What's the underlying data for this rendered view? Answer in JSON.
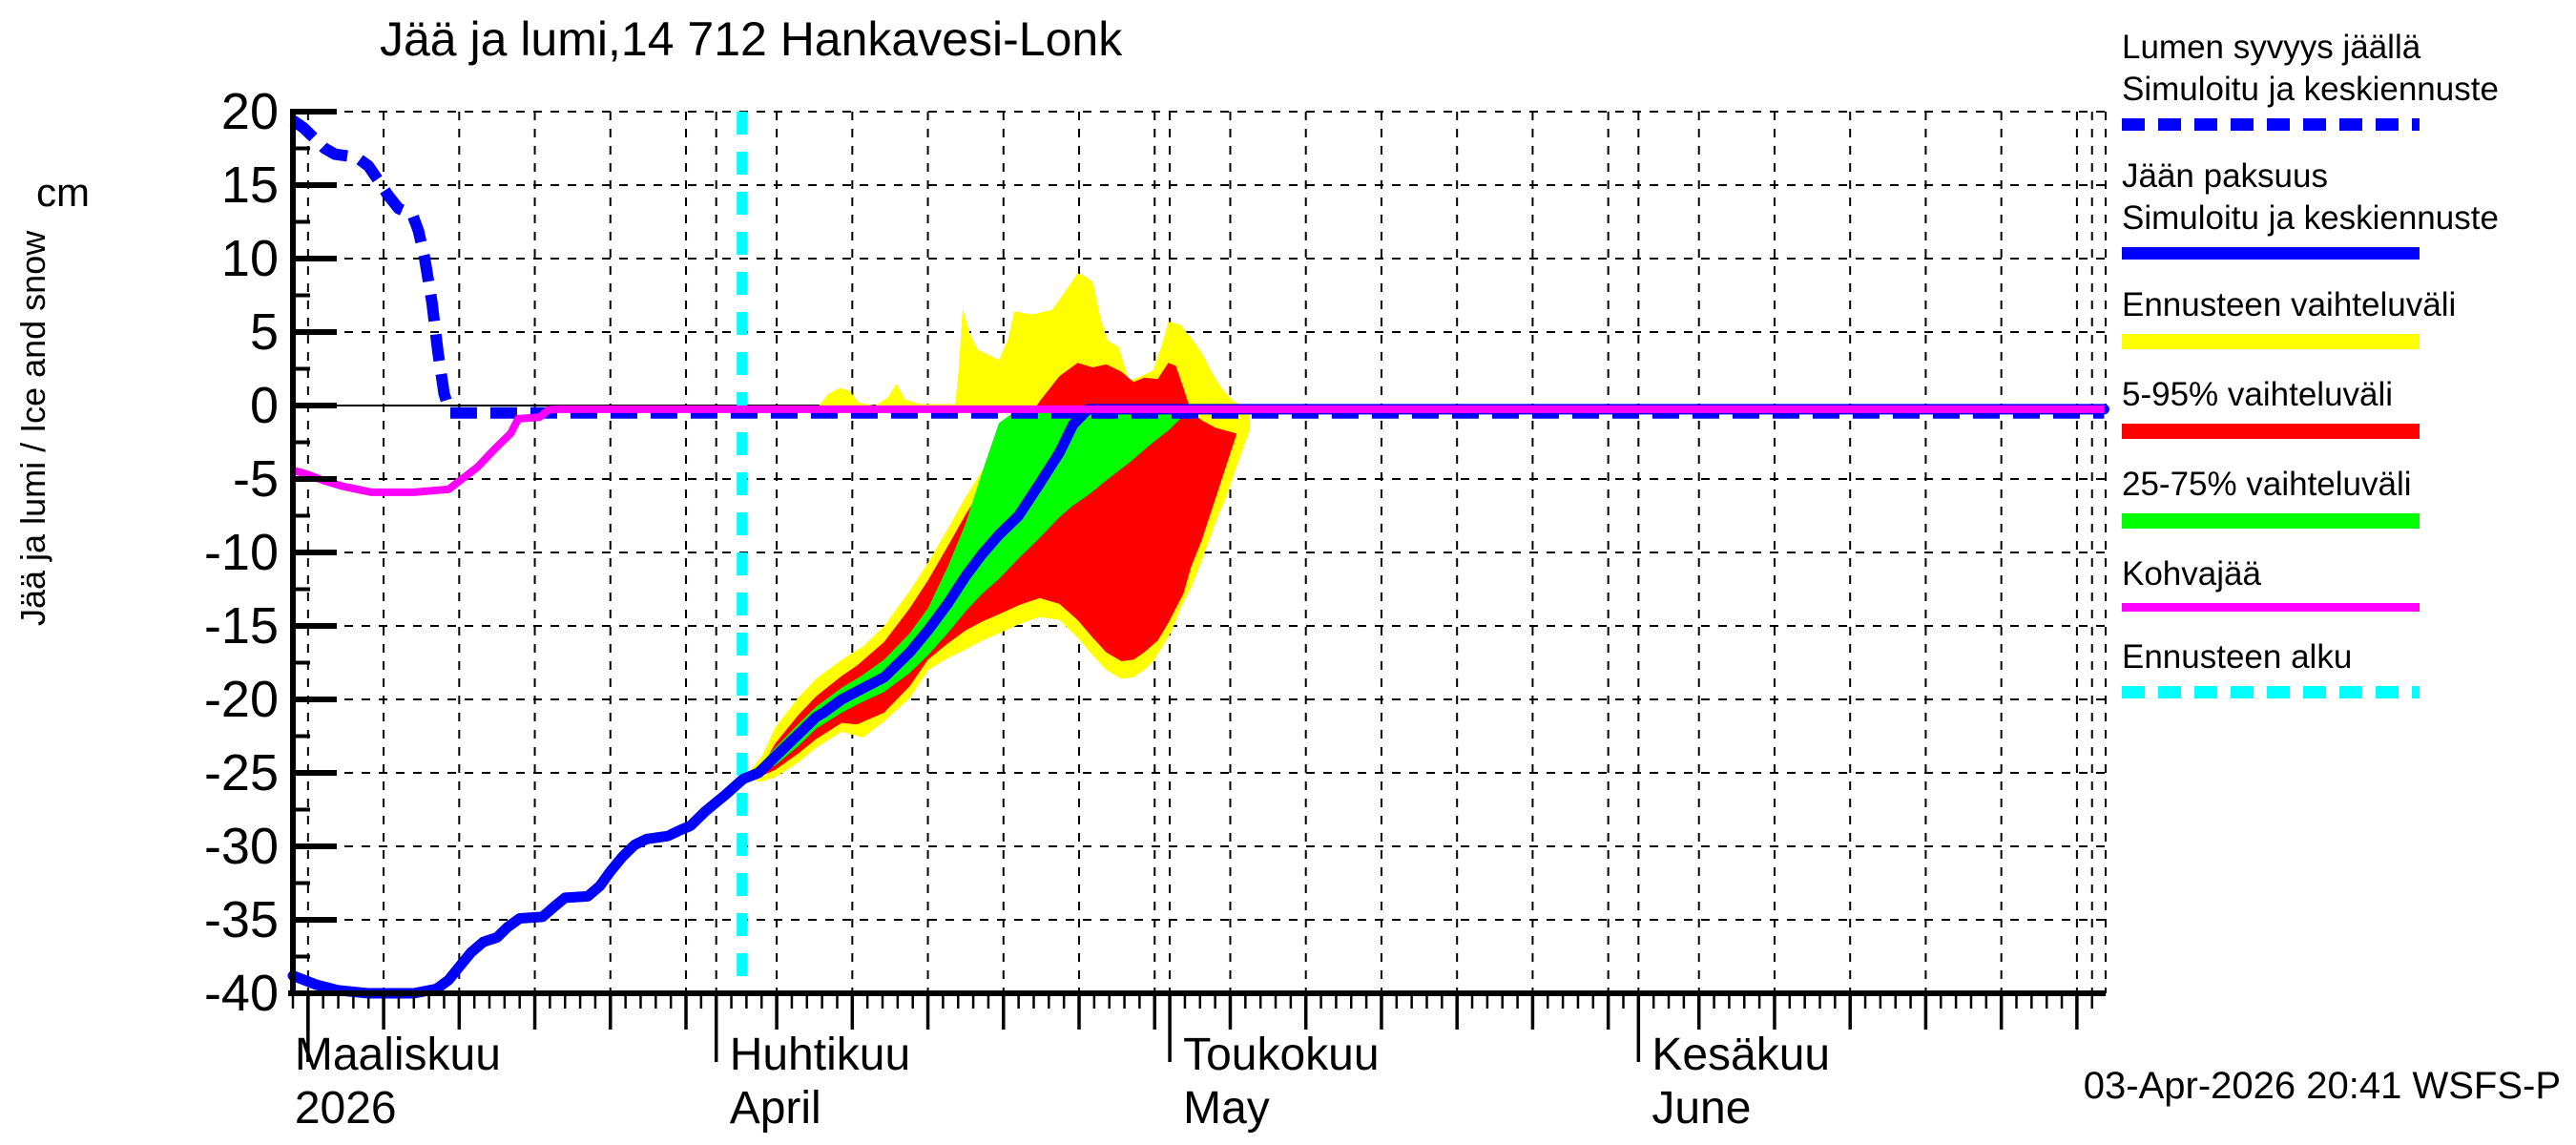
{
  "title": "Jää ja lumi,14 712 Hankavesi-Lonk",
  "timestamp": "03-Apr-2026 20:41 WSFS-P",
  "colors": {
    "blue": "#0000ff",
    "yellow": "#ffff00",
    "red": "#ff0000",
    "green": "#00ff00",
    "magenta": "#ff00ff",
    "cyan": "#00ffff",
    "axis": "#000000",
    "background": "#ffffff"
  },
  "y_axis": {
    "unit": "cm",
    "rotated_label": "Jää ja lumi / Ice and snow",
    "ticks": [
      20,
      15,
      10,
      5,
      0,
      -5,
      -10,
      -15,
      -20,
      -25,
      -30,
      -35,
      -40
    ],
    "min": -40,
    "max": 20
  },
  "x_axis": {
    "span_days": 119.9,
    "months": [
      {
        "fi": "Maaliskuu",
        "sub": "2026",
        "day": 1
      },
      {
        "fi": "Huhtikuu",
        "sub": "April",
        "day": 28
      },
      {
        "fi": "Toukokuu",
        "sub": "May",
        "day": 58
      },
      {
        "fi": "Kesäkuu",
        "sub": "June",
        "day": 89
      }
    ],
    "label_tick_days": [
      1,
      28,
      58,
      89
    ],
    "five_day_ticks": [
      1,
      6,
      11,
      16,
      21,
      26,
      32,
      37,
      42,
      47,
      52,
      57,
      62,
      67,
      72,
      77,
      82,
      87,
      93,
      98,
      103,
      108,
      113,
      118
    ],
    "gridline_days": [
      1,
      6,
      11,
      16,
      21,
      26,
      28,
      32,
      37,
      42,
      47,
      52,
      57,
      58,
      62,
      67,
      72,
      77,
      82,
      87,
      89,
      93,
      98,
      103,
      108,
      113,
      118,
      119,
      119.9
    ]
  },
  "legend": {
    "items": [
      {
        "lines": [
          "Lumen syvyys jäällä",
          "Simuloitu ja keskiennuste"
        ],
        "color": "#0000ff",
        "dashed": true,
        "thickness": 13
      },
      {
        "lines": [
          "Jään paksuus",
          "Simuloitu ja keskiennuste"
        ],
        "color": "#0000ff",
        "dashed": false,
        "thickness": 13
      },
      {
        "lines": [
          "Ennusteen vaihteluväli"
        ],
        "color": "#ffff00",
        "dashed": false,
        "thickness": 16
      },
      {
        "lines": [
          "5-95% vaihteluväli"
        ],
        "color": "#ff0000",
        "dashed": false,
        "thickness": 16
      },
      {
        "lines": [
          "25-75% vaihteluväli"
        ],
        "color": "#00ff00",
        "dashed": false,
        "thickness": 16
      },
      {
        "lines": [
          "Kohvajää"
        ],
        "color": "#ff00ff",
        "dashed": false,
        "thickness": 9
      },
      {
        "lines": [
          "Ennusteen alku"
        ],
        "color": "#00ffff",
        "dashed": true,
        "thickness": 13
      }
    ]
  },
  "chart_data": {
    "type": "line",
    "title": "Jää ja lumi,14 712 Hankavesi-Lonk",
    "ylabel": "Jää ja lumi / Ice and snow (cm)",
    "ylim": [
      -40,
      20
    ],
    "x_unit": "days from 04-Mar-2026",
    "forecast_start_day": 29.7,
    "series": [
      {
        "name": "snow_depth_on_ice_median",
        "style": "blue-dashed",
        "points": [
          [
            0,
            19.4
          ],
          [
            0.7,
            18.9
          ],
          [
            1.4,
            18.2
          ],
          [
            2.1,
            17.5
          ],
          [
            2.8,
            17.1
          ],
          [
            4.2,
            16.9
          ],
          [
            5.0,
            16.3
          ],
          [
            5.6,
            15.4
          ],
          [
            6.3,
            14.3
          ],
          [
            7.0,
            13.4
          ],
          [
            7.9,
            13.0
          ],
          [
            8.3,
            11.9
          ],
          [
            8.7,
            10.1
          ],
          [
            9.2,
            7.0
          ],
          [
            9.6,
            3.6
          ],
          [
            10.0,
            0.8
          ],
          [
            10.4,
            -0.5
          ],
          [
            119.8,
            -0.5
          ]
        ]
      },
      {
        "name": "ice_thickness_median",
        "style": "blue-solid",
        "points": [
          [
            0,
            -38.8
          ],
          [
            1.5,
            -39.4
          ],
          [
            3,
            -39.8
          ],
          [
            5,
            -40
          ],
          [
            8,
            -40
          ],
          [
            9.5,
            -39.7
          ],
          [
            10.3,
            -39.1
          ],
          [
            11,
            -38.2
          ],
          [
            11.8,
            -37.2
          ],
          [
            12.6,
            -36.5
          ],
          [
            13.5,
            -36.2
          ],
          [
            14.2,
            -35.5
          ],
          [
            15,
            -34.9
          ],
          [
            16.5,
            -34.8
          ],
          [
            17.3,
            -34.1
          ],
          [
            18,
            -33.5
          ],
          [
            19.5,
            -33.4
          ],
          [
            20.3,
            -32.7
          ],
          [
            21,
            -31.7
          ],
          [
            21.8,
            -30.7
          ],
          [
            22.6,
            -29.9
          ],
          [
            23.4,
            -29.5
          ],
          [
            24.8,
            -29.3
          ],
          [
            25.6,
            -28.9
          ],
          [
            26.3,
            -28.6
          ],
          [
            27.3,
            -27.6
          ],
          [
            28.6,
            -26.5
          ],
          [
            29.8,
            -25.4
          ],
          [
            30.8,
            -25.0
          ],
          [
            31.9,
            -23.9
          ],
          [
            33.4,
            -22.4
          ],
          [
            34.6,
            -21.2
          ],
          [
            35.1,
            -20.9
          ],
          [
            36.3,
            -20.0
          ],
          [
            37.6,
            -19.3
          ],
          [
            39.1,
            -18.5
          ],
          [
            40.8,
            -16.8
          ],
          [
            42.0,
            -15.3
          ],
          [
            43.3,
            -13.5
          ],
          [
            44.5,
            -11.6
          ],
          [
            45.6,
            -10.1
          ],
          [
            46.7,
            -8.8
          ],
          [
            48.0,
            -7.5
          ],
          [
            49.4,
            -5.3
          ],
          [
            50.7,
            -3.2
          ],
          [
            51.6,
            -1.3
          ],
          [
            52.6,
            -0.25
          ],
          [
            119.8,
            -0.25
          ]
        ]
      },
      {
        "name": "kohvajaa",
        "style": "magenta-solid",
        "points": [
          [
            0,
            -4.4
          ],
          [
            1,
            -4.7
          ],
          [
            2,
            -5.1
          ],
          [
            3.3,
            -5.5
          ],
          [
            5.2,
            -5.9
          ],
          [
            8,
            -5.9
          ],
          [
            10.3,
            -5.7
          ],
          [
            12.2,
            -4.2
          ],
          [
            13.4,
            -2.9
          ],
          [
            14.4,
            -1.9
          ],
          [
            14.9,
            -0.9
          ],
          [
            16.3,
            -0.8
          ],
          [
            16.9,
            -0.3
          ],
          [
            17.5,
            -0.25
          ],
          [
            119.8,
            -0.25
          ]
        ]
      }
    ],
    "bands": [
      {
        "name": "forecast_range_ice",
        "color": "#ffff00",
        "points_d_lo_hi": [
          [
            29.8,
            -25.4,
            -25.4
          ],
          [
            31,
            -25.6,
            -23.9
          ],
          [
            31.9,
            -25.3,
            -21.9
          ],
          [
            33.4,
            -24.3,
            -19.9
          ],
          [
            34.6,
            -23.3,
            -18.6
          ],
          [
            36.3,
            -22.2,
            -17.3
          ],
          [
            37.7,
            -22.6,
            -16.4
          ],
          [
            39.1,
            -21.5,
            -15.0
          ],
          [
            40.8,
            -19.9,
            -12.6
          ],
          [
            42,
            -18.0,
            -10.7
          ],
          [
            43.3,
            -17.2,
            -8.4
          ],
          [
            44.5,
            -16.6,
            -6.2
          ],
          [
            45.6,
            -16.0,
            -4.4
          ],
          [
            46.7,
            -15.5,
            -2.8
          ],
          [
            48,
            -14.9,
            -0.9
          ],
          [
            48.8,
            -14.6,
            -0.4
          ],
          [
            49.4,
            -14.4,
            -0.4
          ],
          [
            50.7,
            -14.6,
            -0.4
          ],
          [
            51.9,
            -15.8,
            -0.4
          ],
          [
            52.9,
            -17.0,
            -0.4
          ],
          [
            53.8,
            -18.0,
            -0.4
          ],
          [
            54.8,
            -18.6,
            -0.4
          ],
          [
            55.6,
            -18.5,
            -0.4
          ],
          [
            56.3,
            -18.0,
            -0.4
          ],
          [
            56.9,
            -17.4,
            -0.4
          ],
          [
            57.5,
            -16.4,
            -0.4
          ],
          [
            58.1,
            -15.4,
            -0.4
          ],
          [
            58.7,
            -13.8,
            -0.4
          ],
          [
            59.4,
            -12.4,
            -0.4
          ],
          [
            60.1,
            -10.6,
            -0.4
          ],
          [
            61,
            -8.0,
            -0.4
          ],
          [
            61.7,
            -6.3,
            -0.4
          ],
          [
            62.6,
            -3.6,
            -0.4
          ],
          [
            63.3,
            -1.6,
            -0.4
          ]
        ]
      },
      {
        "name": "forecast_range_snow",
        "color": "#ffff00",
        "baseline": -0.5,
        "top_points": [
          [
            34.8,
            0.0
          ],
          [
            35.4,
            0.8
          ],
          [
            36.2,
            1.2
          ],
          [
            36.8,
            1.0
          ],
          [
            37.4,
            0.2
          ],
          [
            38.5,
            0.0
          ],
          [
            39.4,
            0.6
          ],
          [
            39.9,
            1.5
          ],
          [
            40.5,
            0.4
          ],
          [
            41.5,
            0.1
          ],
          [
            43.8,
            0.1
          ],
          [
            44.0,
            2.0
          ],
          [
            44.3,
            6.6
          ],
          [
            44.8,
            4.8
          ],
          [
            45.3,
            3.8
          ],
          [
            46.7,
            3.1
          ],
          [
            47.3,
            4.5
          ],
          [
            47.7,
            6.4
          ],
          [
            48.9,
            6.2
          ],
          [
            50.2,
            6.5
          ],
          [
            50.9,
            7.5
          ],
          [
            51.9,
            9.0
          ],
          [
            52.4,
            8.8
          ],
          [
            52.9,
            8.4
          ],
          [
            53.4,
            6.0
          ],
          [
            53.9,
            4.4
          ],
          [
            54.6,
            4.0
          ],
          [
            55.3,
            1.7
          ],
          [
            55.9,
            1.9
          ],
          [
            56.9,
            2.4
          ],
          [
            57.5,
            4.2
          ],
          [
            57.9,
            5.7
          ],
          [
            58.7,
            5.5
          ],
          [
            59.4,
            4.6
          ],
          [
            60.1,
            3.6
          ],
          [
            60.8,
            2.2
          ],
          [
            61.4,
            1.2
          ],
          [
            62.2,
            0.3
          ],
          [
            63.0,
            -0.1
          ]
        ]
      },
      {
        "name": "range_5_95",
        "color": "#ff0000",
        "points_d_lo_hi": [
          [
            29.8,
            -25.4,
            -25.4
          ],
          [
            31,
            -25.2,
            -24.6
          ],
          [
            31.9,
            -24.8,
            -23.0
          ],
          [
            33.4,
            -23.7,
            -21.1
          ],
          [
            34.6,
            -22.7,
            -19.8
          ],
          [
            36.3,
            -21.6,
            -18.4
          ],
          [
            37.3,
            -21.7,
            -17.7
          ],
          [
            39.1,
            -20.9,
            -16.1
          ],
          [
            40.8,
            -19.1,
            -13.8
          ],
          [
            42,
            -17.3,
            -11.9
          ],
          [
            43.3,
            -16.2,
            -9.6
          ],
          [
            44.5,
            -15.3,
            -7.4
          ],
          [
            45.6,
            -14.7,
            -5.6
          ],
          [
            46.7,
            -14.2,
            -3.9
          ],
          [
            48,
            -13.6,
            -1.9
          ],
          [
            49.4,
            -13.1,
            0.3
          ],
          [
            50.7,
            -13.5,
            2.0
          ],
          [
            51.9,
            -14.6,
            2.9
          ],
          [
            52.9,
            -15.8,
            2.6
          ],
          [
            53.8,
            -16.8,
            2.8
          ],
          [
            54.8,
            -17.4,
            2.3
          ],
          [
            55.6,
            -17.3,
            1.6
          ],
          [
            56.3,
            -16.8,
            1.9
          ],
          [
            57.2,
            -16.0,
            1.8
          ],
          [
            57.9,
            -14.8,
            2.9
          ],
          [
            58.4,
            -13.8,
            2.7
          ],
          [
            58.9,
            -12.8,
            1.2
          ],
          [
            59.4,
            -11.0,
            -0.4
          ],
          [
            60.1,
            -9.2,
            -1.0
          ],
          [
            61,
            -6.4,
            -1.5
          ],
          [
            61.7,
            -4.2,
            -1.7
          ],
          [
            62.4,
            -2.0,
            -1.9
          ]
        ]
      },
      {
        "name": "range_25_75",
        "color": "#00ff00",
        "points_d_lo_hi": [
          [
            29.8,
            -25.4,
            -25.4
          ],
          [
            31,
            -24.9,
            -24.3
          ],
          [
            31.9,
            -24.5,
            -23.3
          ],
          [
            33.4,
            -23.2,
            -21.7
          ],
          [
            34.6,
            -22.0,
            -20.5
          ],
          [
            36.3,
            -20.9,
            -19.2
          ],
          [
            37.6,
            -20.2,
            -18.4
          ],
          [
            39.1,
            -19.5,
            -17.3
          ],
          [
            40.8,
            -18.2,
            -15.5
          ],
          [
            42,
            -17.0,
            -13.8
          ],
          [
            43.3,
            -15.5,
            -11.0
          ],
          [
            44.5,
            -14.0,
            -8.0
          ],
          [
            45.6,
            -12.8,
            -4.5
          ],
          [
            46.7,
            -11.8,
            -1.2
          ],
          [
            48,
            -10.4,
            -0.2
          ],
          [
            49.4,
            -9.0,
            -0.2
          ],
          [
            50.7,
            -7.6,
            -0.2
          ],
          [
            51.6,
            -6.8,
            -0.2
          ],
          [
            52.6,
            -6.1,
            -0.2
          ],
          [
            53.8,
            -5.1,
            -0.2
          ],
          [
            55.3,
            -3.9,
            -0.2
          ],
          [
            56.9,
            -2.5,
            -0.2
          ],
          [
            57.9,
            -1.7,
            -0.2
          ],
          [
            58.7,
            -0.9,
            -0.2
          ]
        ]
      }
    ]
  }
}
